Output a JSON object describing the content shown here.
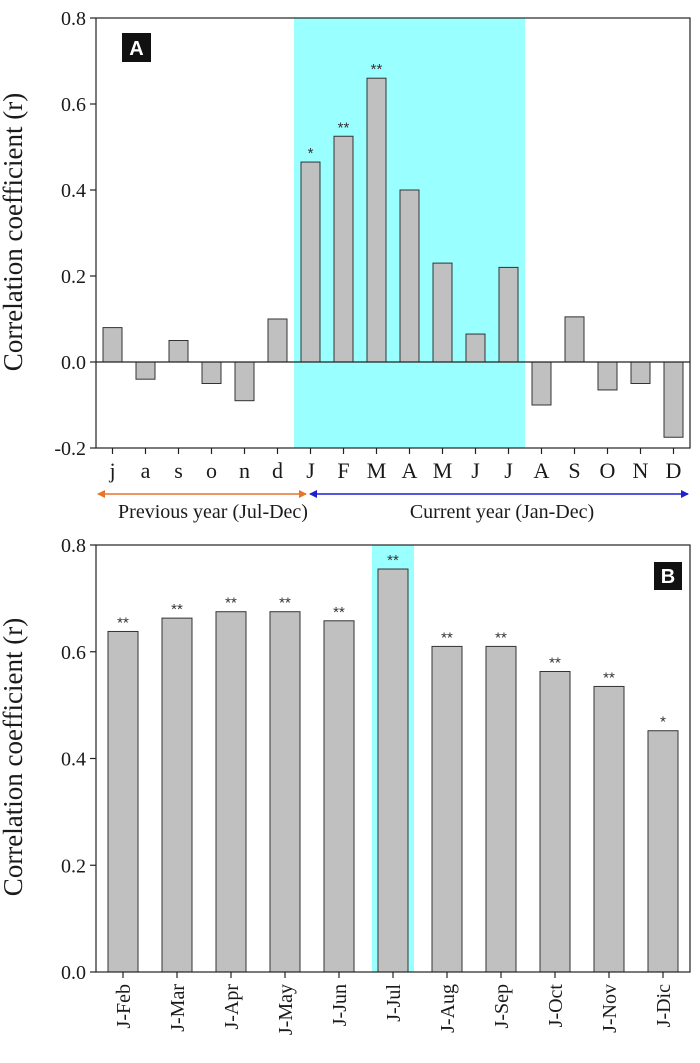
{
  "chart_data": [
    {
      "type": "bar",
      "panel_label": "A",
      "ylabel": "Correlation coefficient (r)",
      "ylim": [
        -0.2,
        0.8
      ],
      "yticks": [
        "-0.2",
        "0.0",
        "0.2",
        "0.4",
        "0.6",
        "0.8"
      ],
      "categories": [
        "j",
        "a",
        "s",
        "o",
        "n",
        "d",
        "J",
        "F",
        "M",
        "A",
        "M",
        "J",
        "J",
        "A",
        "S",
        "O",
        "N",
        "D"
      ],
      "values": [
        0.08,
        -0.04,
        0.05,
        -0.05,
        -0.09,
        0.1,
        0.465,
        0.525,
        0.66,
        0.4,
        0.23,
        0.065,
        0.22,
        -0.1,
        0.105,
        -0.065,
        -0.05,
        -0.175
      ],
      "significance": [
        "",
        "",
        "",
        "",
        "",
        "",
        "*",
        "**",
        "**",
        "",
        "",
        "",
        "",
        "",
        "",
        "",
        "",
        ""
      ],
      "highlight_range": [
        "J",
        "J"
      ],
      "highlight_color": "#99ffff",
      "periods": [
        {
          "label": "Previous year (Jul-Dec)",
          "color": "#e8742a"
        },
        {
          "label": "Current year (Jan-Dec)",
          "color": "#1f1fd0"
        }
      ]
    },
    {
      "type": "bar",
      "panel_label": "B",
      "ylabel": "Correlation coefficient (r)",
      "ylim": [
        0.0,
        0.8
      ],
      "yticks": [
        "0.0",
        "0.2",
        "0.4",
        "0.6",
        "0.8"
      ],
      "categories": [
        "J-Feb",
        "J-Mar",
        "J-Apr",
        "J-May",
        "J-Jun",
        "J-Jul",
        "J-Aug",
        "J-Sep",
        "J-Oct",
        "J-Nov",
        "J-Dic"
      ],
      "values": [
        0.638,
        0.663,
        0.675,
        0.675,
        0.658,
        0.755,
        0.61,
        0.61,
        0.563,
        0.535,
        0.452
      ],
      "significance": [
        "**",
        "**",
        "**",
        "**",
        "**",
        "**",
        "**",
        "**",
        "**",
        "**",
        "*"
      ],
      "highlight_category": "J-Jul",
      "highlight_color": "#99ffff"
    }
  ],
  "colors": {
    "bar_fill": "#c0c0c0",
    "bar_edge": "#333333"
  }
}
